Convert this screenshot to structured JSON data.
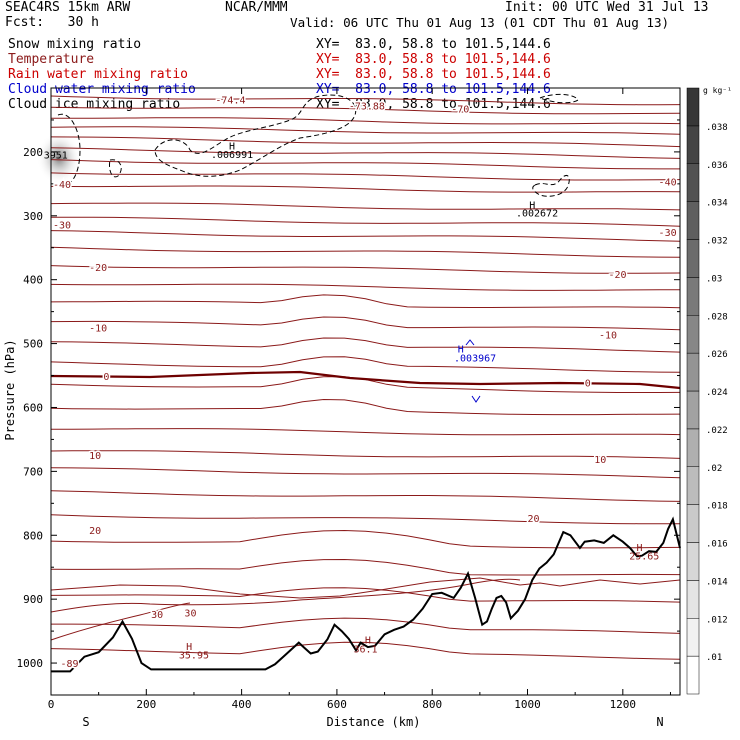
{
  "header": {
    "model": "SEAC4RS 15km ARW",
    "org": "NCAR/MMM",
    "init": "Init: 00 UTC Wed 31 Jul 13",
    "fcst": "Fcst:   30 h",
    "valid": "Valid: 06 UTC Thu 01 Aug 13 (01 CDT Thu 01 Aug 13)"
  },
  "fields": [
    {
      "name": "Snow mixing ratio",
      "xy": "XY=  83.0, 58.8 to 101.5,144.6",
      "color": "#000000"
    },
    {
      "name": "Temperature",
      "xy": "XY=  83.0, 58.8 to 101.5,144.6",
      "color": "#8b1a1a"
    },
    {
      "name": "Rain water mixing ratio",
      "xy": "XY=  83.0, 58.8 to 101.5,144.6",
      "color": "#cc0000"
    },
    {
      "name": "Cloud water mixing ratio",
      "xy": "XY=  83.0, 58.8 to 101.5,144.6",
      "color": "#0000cc"
    },
    {
      "name": "Cloud ice mixing ratio",
      "xy": "XY=  83.0, 58.8 to 101.5,144.6",
      "color": "#000000"
    }
  ],
  "chart_data": {
    "type": "cross-section",
    "xlabel": "Distance (km)",
    "ylabel": "Pressure (hPa)",
    "xlim": [
      0,
      1320
    ],
    "ylim": [
      1050,
      100
    ],
    "x_ticks": [
      0,
      200,
      400,
      600,
      800,
      1000,
      1200
    ],
    "y_ticks": [
      200,
      300,
      400,
      500,
      600,
      700,
      800,
      900,
      1000
    ],
    "endpoints": {
      "left": "S",
      "right": "N"
    },
    "colorbar": {
      "unit": "g kg⁻¹",
      "ticks": [
        ".01",
        ".012",
        ".014",
        ".016",
        ".018",
        ".02",
        ".022",
        ".024",
        ".026",
        ".028",
        ".03",
        ".032",
        ".034",
        ".036",
        ".038"
      ]
    },
    "temperature_labels": [
      {
        "text": "-74.4",
        "x": 345,
        "p": 118
      },
      {
        "text": "-73.88",
        "x": 625,
        "p": 127
      },
      {
        "text": "-70",
        "x": 840,
        "p": 132
      },
      {
        "text": "-40",
        "x": 0,
        "p": 250
      },
      {
        "text": "-40",
        "x": 1275,
        "p": 246
      },
      {
        "text": "-30",
        "x": 0,
        "p": 314
      },
      {
        "text": "-30",
        "x": 1275,
        "p": 325
      },
      {
        "text": "-20",
        "x": 80,
        "p": 380
      },
      {
        "text": "-20",
        "x": 1170,
        "p": 391
      },
      {
        "text": "-10",
        "x": 80,
        "p": 475
      },
      {
        "text": "-10",
        "x": 1150,
        "p": 486
      },
      {
        "text": "0",
        "x": 110,
        "p": 551
      },
      {
        "text": "0",
        "x": 1120,
        "p": 561
      },
      {
        "text": "10",
        "x": 80,
        "p": 674
      },
      {
        "text": "10",
        "x": 1140,
        "p": 681
      },
      {
        "text": "20",
        "x": 80,
        "p": 792
      },
      {
        "text": "20",
        "x": 1000,
        "p": 773
      },
      {
        "text": "30",
        "x": 210,
        "p": 923
      },
      {
        "text": "30",
        "x": 280,
        "p": 921
      },
      {
        "text": "-89",
        "x": 20,
        "p": 1000
      }
    ],
    "extrema_labels": [
      {
        "text": "H",
        "x": 380,
        "p": 190,
        "color": "#000000"
      },
      {
        "text": ".006991",
        "x": 380,
        "p": 203,
        "color": "#000000"
      },
      {
        "text": "H",
        "x": 1010,
        "p": 282,
        "color": "#000000"
      },
      {
        "text": ".002672",
        "x": 1020,
        "p": 295,
        "color": "#000000"
      },
      {
        "text": "3951",
        "x": 10,
        "p": 204,
        "color": "#000000"
      },
      {
        "text": "H",
        "x": 860,
        "p": 508,
        "color": "#0000cc"
      },
      {
        "text": ".003967",
        "x": 890,
        "p": 522,
        "color": "#0000cc"
      },
      {
        "text": "H",
        "x": 290,
        "p": 973,
        "color": "#8b1a1a"
      },
      {
        "text": "35.95",
        "x": 300,
        "p": 987,
        "color": "#8b1a1a"
      },
      {
        "text": "H",
        "x": 665,
        "p": 963,
        "color": "#8b1a1a"
      },
      {
        "text": "36.1",
        "x": 660,
        "p": 977,
        "color": "#8b1a1a"
      },
      {
        "text": "H",
        "x": 1235,
        "p": 818,
        "color": "#8b1a1a"
      },
      {
        "text": "25.65",
        "x": 1245,
        "p": 832,
        "color": "#8b1a1a"
      }
    ],
    "terrain": [
      [
        0,
        1013
      ],
      [
        40,
        1013
      ],
      [
        70,
        990
      ],
      [
        100,
        983
      ],
      [
        130,
        960
      ],
      [
        150,
        935
      ],
      [
        170,
        962
      ],
      [
        190,
        1000
      ],
      [
        210,
        1010
      ],
      [
        300,
        1010
      ],
      [
        450,
        1010
      ],
      [
        470,
        1002
      ],
      [
        495,
        985
      ],
      [
        520,
        968
      ],
      [
        530,
        975
      ],
      [
        545,
        985
      ],
      [
        560,
        982
      ],
      [
        580,
        963
      ],
      [
        595,
        940
      ],
      [
        610,
        950
      ],
      [
        625,
        962
      ],
      [
        640,
        980
      ],
      [
        650,
        968
      ],
      [
        665,
        975
      ],
      [
        680,
        973
      ],
      [
        700,
        955
      ],
      [
        720,
        948
      ],
      [
        740,
        943
      ],
      [
        760,
        932
      ],
      [
        780,
        915
      ],
      [
        800,
        892
      ],
      [
        820,
        890
      ],
      [
        845,
        898
      ],
      [
        860,
        882
      ],
      [
        875,
        860
      ],
      [
        890,
        898
      ],
      [
        905,
        940
      ],
      [
        915,
        935
      ],
      [
        925,
        915
      ],
      [
        935,
        898
      ],
      [
        945,
        895
      ],
      [
        955,
        905
      ],
      [
        965,
        930
      ],
      [
        980,
        918
      ],
      [
        995,
        900
      ],
      [
        1010,
        870
      ],
      [
        1025,
        852
      ],
      [
        1040,
        843
      ],
      [
        1055,
        830
      ],
      [
        1075,
        795
      ],
      [
        1090,
        800
      ],
      [
        1110,
        820
      ],
      [
        1120,
        810
      ],
      [
        1140,
        808
      ],
      [
        1160,
        812
      ],
      [
        1180,
        800
      ],
      [
        1200,
        810
      ],
      [
        1215,
        820
      ],
      [
        1230,
        833
      ],
      [
        1240,
        832
      ],
      [
        1255,
        825
      ],
      [
        1270,
        826
      ],
      [
        1285,
        812
      ],
      [
        1295,
        790
      ],
      [
        1305,
        775
      ],
      [
        1320,
        820
      ]
    ]
  }
}
